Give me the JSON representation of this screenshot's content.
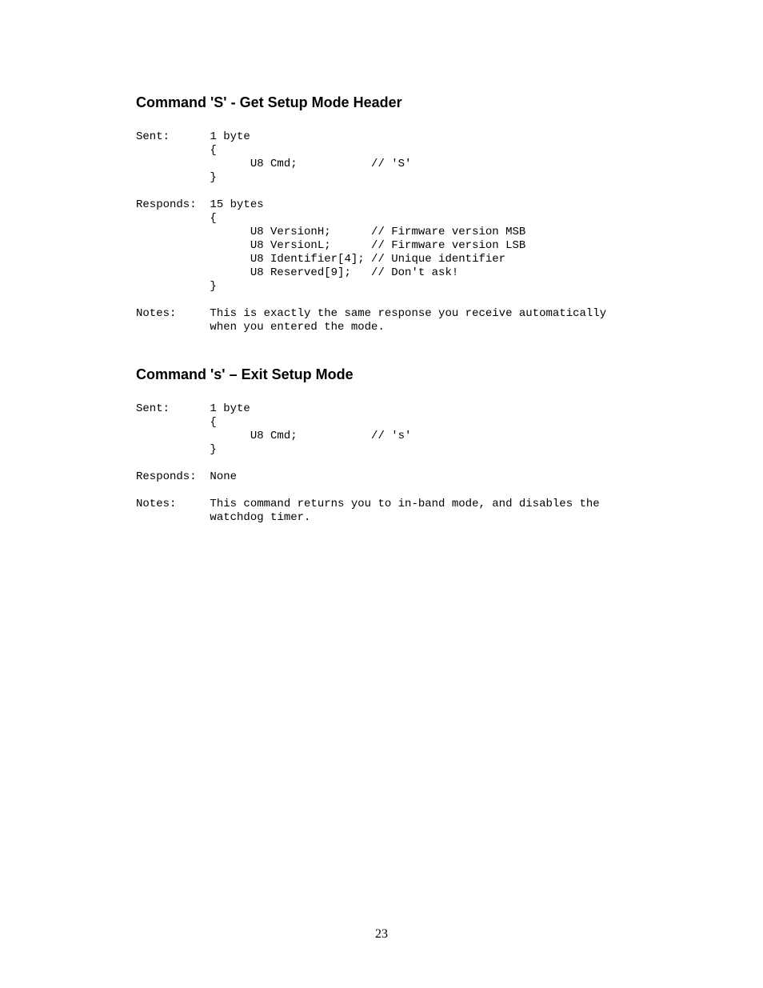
{
  "sectionA": {
    "heading": "Command 'S' - Get Setup Mode Header",
    "code": "Sent:      1 byte\n           {\n                 U8 Cmd;           // 'S'\n           }\n\nResponds:  15 bytes\n           {\n                 U8 VersionH;      // Firmware version MSB\n                 U8 VersionL;      // Firmware version LSB\n                 U8 Identifier[4]; // Unique identifier\n                 U8 Reserved[9];   // Don't ask!\n           }\n\nNotes:     This is exactly the same response you receive automatically\n           when you entered the mode."
  },
  "sectionB": {
    "heading": "Command 's' – Exit Setup Mode",
    "code": "Sent:      1 byte\n           {\n                 U8 Cmd;           // 's'\n           }\n\nResponds:  None\n\nNotes:     This command returns you to in-band mode, and disables the\n           watchdog timer."
  },
  "page_number": "23"
}
